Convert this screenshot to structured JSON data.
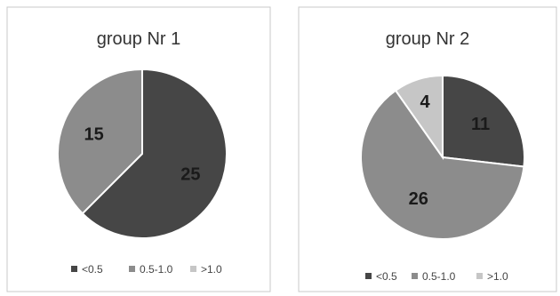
{
  "chart_data": [
    {
      "type": "pie",
      "title": "group Nr 1",
      "categories": [
        "<0.5",
        "0.5-1.0",
        ">1.0"
      ],
      "values": [
        25,
        15,
        null
      ],
      "data_labels": [
        "25",
        "15",
        ""
      ],
      "colors": [
        "#464646",
        "#8c8c8c",
        "#c6c6c6"
      ],
      "legend": "bottom",
      "legend_entries": [
        "<0.5",
        "0.5-1.0",
        ">1.0"
      ]
    },
    {
      "type": "pie",
      "title": "group Nr 2",
      "categories": [
        "<0.5",
        "0.5-1.0",
        ">1.0"
      ],
      "values": [
        11,
        26,
        4
      ],
      "data_labels": [
        "11",
        "26",
        "4"
      ],
      "colors": [
        "#464646",
        "#8c8c8c",
        "#c6c6c6"
      ],
      "legend": "bottom",
      "legend_entries": [
        "<0.5",
        "0.5-1.0",
        ">1.0"
      ]
    }
  ]
}
